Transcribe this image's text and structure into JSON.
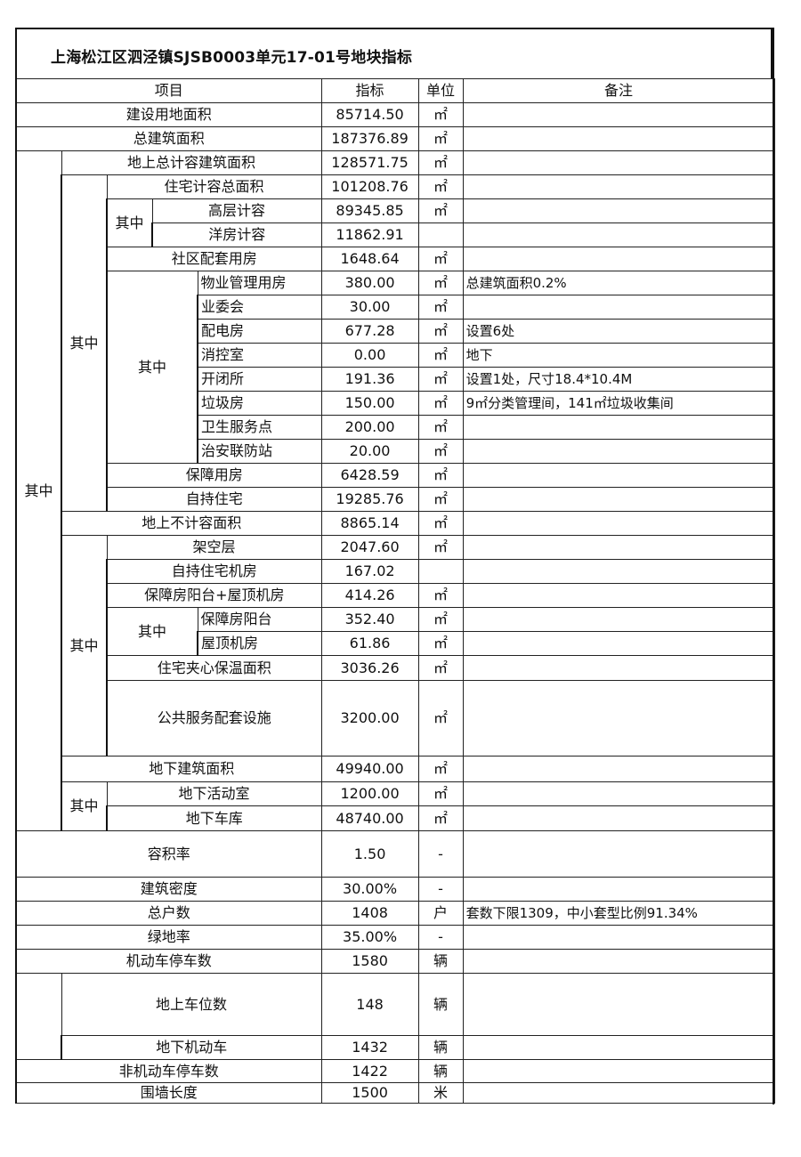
{
  "title": "上海松江区泗泾镇SJSB0003单元17-01号地块指标",
  "header": {
    "item": "项目",
    "value": "指标",
    "unit": "单位",
    "note": "备注"
  },
  "group_label": "其中",
  "rows": [
    {
      "label": "建设用地面积",
      "value": "85714.50",
      "unit": "㎡",
      "note": ""
    },
    {
      "label": "总建筑面积",
      "value": "187376.89",
      "unit": "㎡",
      "note": ""
    },
    {
      "label": "地上总计容建筑面积",
      "value": "128571.75",
      "unit": "㎡",
      "note": ""
    },
    {
      "label": "住宅计容总面积",
      "value": "101208.76",
      "unit": "㎡",
      "note": ""
    },
    {
      "label": "高层计容",
      "value": "89345.85",
      "unit": "㎡",
      "note": ""
    },
    {
      "label": "洋房计容",
      "value": "11862.91",
      "unit": "",
      "note": ""
    },
    {
      "label": "社区配套用房",
      "value": "1648.64",
      "unit": "㎡",
      "note": ""
    },
    {
      "label": "物业管理用房",
      "value": "380.00",
      "unit": "㎡",
      "note": "总建筑面积0.2%"
    },
    {
      "label": "业委会",
      "value": "30.00",
      "unit": "㎡",
      "note": ""
    },
    {
      "label": "配电房",
      "value": "677.28",
      "unit": "㎡",
      "note": "设置6处"
    },
    {
      "label": "消控室",
      "value": "0.00",
      "unit": "㎡",
      "note": "地下"
    },
    {
      "label": "开闭所",
      "value": "191.36",
      "unit": "㎡",
      "note": "设置1处，尺寸18.4*10.4M"
    },
    {
      "label": "垃圾房",
      "value": "150.00",
      "unit": "㎡",
      "note": "9㎡分类管理间，141㎡垃圾收集间"
    },
    {
      "label": "卫生服务点",
      "value": "200.00",
      "unit": "㎡",
      "note": ""
    },
    {
      "label": "治安联防站",
      "value": "20.00",
      "unit": "㎡",
      "note": ""
    },
    {
      "label": "保障用房",
      "value": "6428.59",
      "unit": "㎡",
      "note": ""
    },
    {
      "label": "自持住宅",
      "value": "19285.76",
      "unit": "㎡",
      "note": ""
    },
    {
      "label": "地上不计容面积",
      "value": "8865.14",
      "unit": "㎡",
      "note": ""
    },
    {
      "label": "架空层",
      "value": "2047.60",
      "unit": "㎡",
      "note": ""
    },
    {
      "label": "自持住宅机房",
      "value": "167.02",
      "unit": "",
      "note": ""
    },
    {
      "label": "保障房阳台+屋顶机房",
      "value": "414.26",
      "unit": "㎡",
      "note": ""
    },
    {
      "label": "保障房阳台",
      "value": "352.40",
      "unit": "㎡",
      "note": ""
    },
    {
      "label": "屋顶机房",
      "value": "61.86",
      "unit": "㎡",
      "note": ""
    },
    {
      "label": "住宅夹心保温面积",
      "value": "3036.26",
      "unit": "㎡",
      "note": ""
    },
    {
      "label": "公共服务配套设施",
      "value": "3200.00",
      "unit": "㎡",
      "note": ""
    },
    {
      "label": "地下建筑面积",
      "value": "49940.00",
      "unit": "㎡",
      "note": ""
    },
    {
      "label": "地下活动室",
      "value": "1200.00",
      "unit": "㎡",
      "note": ""
    },
    {
      "label": "地下车库",
      "value": "48740.00",
      "unit": "㎡",
      "note": ""
    },
    {
      "label": "容积率",
      "value": "1.50",
      "unit": "-",
      "note": ""
    },
    {
      "label": "建筑密度",
      "value": "30.00%",
      "unit": "-",
      "note": ""
    },
    {
      "label": "总户数",
      "value": "1408",
      "unit": "户",
      "note": "套数下限1309，中小套型比例91.34%"
    },
    {
      "label": "绿地率",
      "value": "35.00%",
      "unit": "-",
      "note": ""
    },
    {
      "label": "机动车停车数",
      "value": "1580",
      "unit": "辆",
      "note": ""
    },
    {
      "label": "地上车位数",
      "value": "148",
      "unit": "辆",
      "note": ""
    },
    {
      "label": "地下机动车",
      "value": "1432",
      "unit": "辆",
      "note": ""
    },
    {
      "label": "非机动车停车数",
      "value": "1422",
      "unit": "辆",
      "note": ""
    },
    {
      "label": "围墙长度",
      "value": "1500",
      "unit": "米",
      "note": ""
    }
  ]
}
